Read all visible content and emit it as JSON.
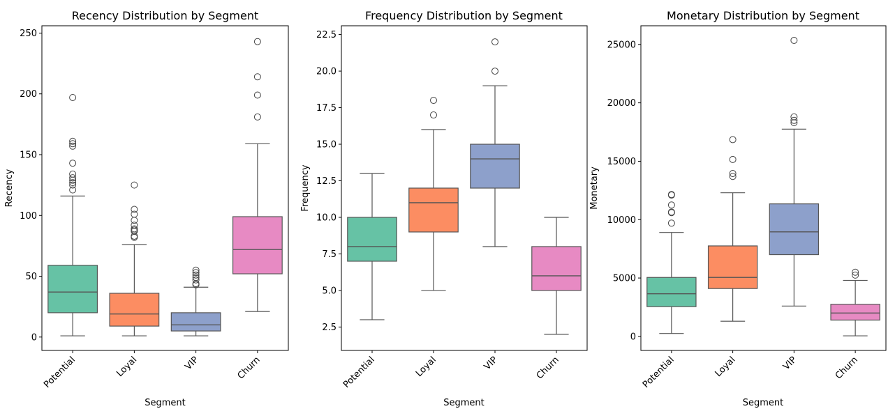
{
  "chart_data": [
    {
      "type": "box",
      "title": "Recency Distribution by Segment",
      "xlabel": "Segment",
      "ylabel": "Recency",
      "categories": [
        "Potential",
        "Loyal",
        "VIP",
        "Churn"
      ],
      "ylim": [
        -11,
        256
      ],
      "yticks": [
        0,
        50,
        100,
        150,
        200,
        250
      ],
      "ytick_labels": [
        "0",
        "50",
        "100",
        "150",
        "200",
        "250"
      ],
      "boxes": [
        {
          "min": 1,
          "q1": 20,
          "median": 37,
          "q3": 59,
          "max": 116,
          "outliers": [
            121,
            125,
            127,
            129,
            131,
            134,
            143,
            157,
            159,
            161,
            197
          ]
        },
        {
          "min": 1,
          "q1": 9,
          "median": 19,
          "q3": 36,
          "max": 76,
          "outliers": [
            82,
            83,
            87,
            88,
            89,
            92,
            96,
            101,
            105,
            125
          ]
        },
        {
          "min": 1,
          "q1": 5,
          "median": 10,
          "q3": 20,
          "max": 41,
          "outliers": [
            43,
            44,
            47,
            49,
            51,
            53,
            55
          ]
        },
        {
          "min": 21,
          "q1": 52,
          "median": 72,
          "q3": 99,
          "max": 159,
          "outliers": [
            181,
            199,
            214,
            243
          ]
        }
      ]
    },
    {
      "type": "box",
      "title": "Frequency Distribution by Segment",
      "xlabel": "Segment",
      "ylabel": "Frequency",
      "categories": [
        "Potential",
        "Loyal",
        "VIP",
        "Churn"
      ],
      "ylim": [
        0.9,
        23.1
      ],
      "yticks": [
        2.5,
        5.0,
        7.5,
        10.0,
        12.5,
        15.0,
        17.5,
        20.0,
        22.5
      ],
      "ytick_labels": [
        "2.5",
        "5.0",
        "7.5",
        "10.0",
        "12.5",
        "15.0",
        "17.5",
        "20.0",
        "22.5"
      ],
      "boxes": [
        {
          "min": 3,
          "q1": 7,
          "median": 8,
          "q3": 10,
          "max": 13,
          "outliers": []
        },
        {
          "min": 5,
          "q1": 9,
          "median": 11,
          "q3": 12,
          "max": 16,
          "outliers": [
            17,
            18
          ]
        },
        {
          "min": 8,
          "q1": 12,
          "median": 14,
          "q3": 15,
          "max": 19,
          "outliers": [
            20,
            22
          ]
        },
        {
          "min": 2,
          "q1": 5,
          "median": 6,
          "q3": 8,
          "max": 10,
          "outliers": []
        }
      ]
    },
    {
      "type": "box",
      "title": "Monetary Distribution by Segment",
      "xlabel": "Segment",
      "ylabel": "Monetary",
      "categories": [
        "Potential",
        "Loyal",
        "VIP",
        "Churn"
      ],
      "ylim": [
        -1200,
        26600
      ],
      "yticks": [
        0,
        5000,
        10000,
        15000,
        20000,
        25000
      ],
      "ytick_labels": [
        "0",
        "5000",
        "10000",
        "15000",
        "20000",
        "25000"
      ],
      "boxes": [
        {
          "min": 250,
          "q1": 2550,
          "median": 3650,
          "q3": 5050,
          "max": 8900,
          "outliers": [
            9700,
            10600,
            10650,
            11250,
            12100,
            12150
          ]
        },
        {
          "min": 1300,
          "q1": 4100,
          "median": 5050,
          "q3": 7750,
          "max": 12300,
          "outliers": [
            13700,
            13950,
            15150,
            16850
          ]
        },
        {
          "min": 2600,
          "q1": 7000,
          "median": 8950,
          "q3": 11350,
          "max": 17750,
          "outliers": [
            18300,
            18500,
            18800,
            25350
          ]
        },
        {
          "min": 50,
          "q1": 1400,
          "median": 2000,
          "q3": 2750,
          "max": 4800,
          "outliers": [
            5250,
            5500
          ]
        }
      ]
    }
  ],
  "palette": [
    "#66c2a5",
    "#fc8d62",
    "#8da0cb",
    "#e78ac3"
  ]
}
